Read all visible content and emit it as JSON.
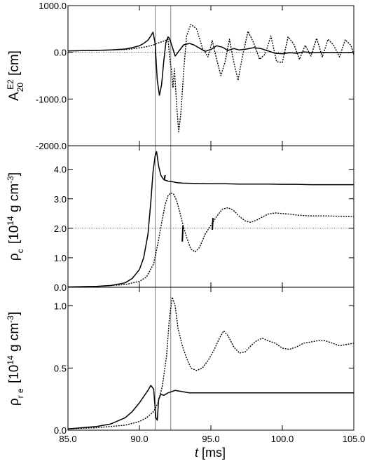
{
  "chart_data": [
    {
      "type": "line",
      "ylabel": {
        "main": "A",
        "sub": "20",
        "sup": "E2",
        "unit": " [cm]"
      },
      "ylim": [
        -2000,
        1000
      ],
      "yticks": [
        "1000.0",
        "0.0",
        "-1000.0",
        "-2000.0"
      ],
      "ytick_values": [
        1000,
        0,
        -1000,
        -2000
      ],
      "reference_lines": {
        "x": [
          91.1,
          92.2
        ],
        "y": [
          0
        ]
      },
      "series": [
        {
          "style": "solid",
          "x": [
            85,
            86,
            87,
            88,
            89,
            89.5,
            90,
            90.3,
            90.6,
            90.8,
            90.95,
            91.1,
            91.25,
            91.4,
            91.55,
            91.7,
            91.85,
            92,
            92.1,
            92.3,
            92.5,
            92.8,
            93.1,
            93.5,
            93.8,
            94.2,
            94.6,
            95,
            95.4,
            95.8,
            96.2,
            96.6,
            97,
            97.5,
            98,
            98.5,
            99,
            99.5,
            100,
            100.5,
            101,
            101.5,
            102,
            103,
            104,
            105
          ],
          "y": [
            30,
            35,
            40,
            50,
            70,
            100,
            140,
            190,
            260,
            350,
            430,
            200,
            -600,
            -920,
            -700,
            -200,
            200,
            330,
            300,
            120,
            -80,
            40,
            160,
            190,
            160,
            90,
            20,
            60,
            140,
            110,
            40,
            80,
            50,
            70,
            100,
            80,
            30,
            -20,
            -30,
            -10,
            -20,
            10,
            -10,
            0,
            -10,
            0
          ]
        },
        {
          "style": "dotted",
          "x": [
            85,
            86,
            87,
            88,
            89,
            89.5,
            90,
            90.5,
            91,
            91.4,
            91.8,
            92,
            92.15,
            92.25,
            92.35,
            92.45,
            92.6,
            92.75,
            92.9,
            93.1,
            93.3,
            93.6,
            94,
            94.4,
            94.8,
            95.1,
            95.4,
            95.7,
            96,
            96.3,
            96.6,
            96.9,
            97.2,
            97.6,
            98,
            98.4,
            98.8,
            99.2,
            99.6,
            100,
            100.4,
            100.8,
            101.2,
            101.6,
            102,
            102.4,
            102.8,
            103.2,
            103.6,
            104,
            104.4,
            104.8,
            105
          ],
          "y": [
            30,
            35,
            40,
            50,
            60,
            75,
            95,
            120,
            160,
            210,
            250,
            280,
            -200,
            -400,
            -760,
            -350,
            -1100,
            -1700,
            -1300,
            -400,
            350,
            600,
            500,
            100,
            -100,
            250,
            -150,
            -500,
            -200,
            280,
            -200,
            -600,
            -100,
            450,
            200,
            -150,
            -40,
            350,
            -200,
            -220,
            330,
            180,
            -150,
            150,
            -80,
            300,
            -100,
            280,
            150,
            -100,
            270,
            150,
            -50
          ]
        }
      ]
    },
    {
      "type": "line",
      "ylabel": {
        "main": "ρ",
        "sub": "c",
        "pre": " [10",
        "sup": "14",
        "unit": " g cm",
        "sup2": "-3",
        "post": "]"
      },
      "ylim": [
        0,
        4.8
      ],
      "yticks": [
        "0.0",
        "1.0",
        "2.0",
        "3.0",
        "4.0"
      ],
      "ytick_values": [
        0,
        1,
        2,
        3,
        4
      ],
      "reference_lines": {
        "x": [
          91.1,
          92.2
        ],
        "y": [
          2.0
        ]
      },
      "series": [
        {
          "style": "solid",
          "x": [
            85,
            87,
            88,
            89,
            89.5,
            90,
            90.3,
            90.6,
            90.8,
            90.95,
            91.1,
            91.2,
            91.35,
            91.5,
            91.7,
            92,
            92.3,
            92.6,
            93,
            94,
            95,
            96,
            97,
            98,
            99,
            100,
            101,
            102,
            103,
            104,
            105
          ],
          "y": [
            0.01,
            0.03,
            0.06,
            0.15,
            0.3,
            0.6,
            1.0,
            1.8,
            2.9,
            3.9,
            4.45,
            4.6,
            4.1,
            3.8,
            3.65,
            3.6,
            3.58,
            3.55,
            3.53,
            3.52,
            3.51,
            3.51,
            3.5,
            3.5,
            3.5,
            3.49,
            3.49,
            3.48,
            3.48,
            3.48,
            3.48
          ],
          "wiggles": [
            {
              "x": 91.75,
              "y": [
                3.66,
                3.8
              ]
            }
          ]
        },
        {
          "style": "dotted",
          "x": [
            85,
            87,
            89,
            90,
            90.5,
            91,
            91.3,
            91.6,
            91.8,
            92,
            92.2,
            92.4,
            92.6,
            92.8,
            93,
            93.3,
            93.6,
            93.9,
            94.2,
            94.6,
            95,
            95.4,
            95.8,
            96.2,
            96.6,
            97,
            97.4,
            97.8,
            98.2,
            98.6,
            99,
            99.5,
            100,
            100.5,
            101,
            101.5,
            102,
            103,
            104,
            105
          ],
          "y": [
            0.01,
            0.03,
            0.09,
            0.2,
            0.35,
            0.8,
            1.5,
            2.3,
            2.8,
            3.1,
            3.2,
            3.15,
            2.95,
            2.6,
            2.2,
            1.7,
            1.3,
            1.2,
            1.35,
            1.8,
            2.1,
            2.4,
            2.65,
            2.7,
            2.6,
            2.4,
            2.25,
            2.2,
            2.28,
            2.38,
            2.48,
            2.52,
            2.5,
            2.48,
            2.45,
            2.43,
            2.42,
            2.42,
            2.41,
            2.4
          ],
          "wiggles": [
            {
              "x": 93.0,
              "y": [
                1.55,
                2.1
              ]
            },
            {
              "x": 95.1,
              "y": [
                1.95,
                2.35
              ]
            }
          ]
        }
      ]
    },
    {
      "type": "line",
      "ylabel": {
        "main": "ρ",
        "sub": "r e",
        "pre": " [10",
        "sup": "14",
        "unit": " g cm",
        "sup2": "-3",
        "post": "]"
      },
      "ylim": [
        0,
        1.15
      ],
      "yticks": [
        "0.0",
        "0.5",
        "1.0"
      ],
      "ytick_values": [
        0,
        0.5,
        1.0
      ],
      "reference_lines": {
        "x": [
          91.1,
          92.2
        ],
        "y": []
      },
      "series": [
        {
          "style": "solid",
          "x": [
            85,
            87,
            88,
            89,
            89.5,
            90,
            90.3,
            90.6,
            90.8,
            91,
            91.05,
            91.15,
            91.25,
            91.35,
            91.5,
            91.7,
            92,
            92.5,
            93,
            93.5,
            94,
            95,
            96,
            97,
            98,
            99,
            100,
            101,
            102,
            103,
            104,
            105
          ],
          "y": [
            0.01,
            0.03,
            0.05,
            0.1,
            0.15,
            0.22,
            0.27,
            0.32,
            0.36,
            0.33,
            0.25,
            0.1,
            0.08,
            0.25,
            0.29,
            0.28,
            0.3,
            0.32,
            0.31,
            0.3,
            0.3,
            0.3,
            0.3,
            0.3,
            0.3,
            0.3,
            0.3,
            0.3,
            0.3,
            0.3,
            0.3,
            0.3
          ]
        },
        {
          "style": "dotted",
          "x": [
            85,
            87,
            89,
            90,
            90.5,
            91,
            91.3,
            91.6,
            91.9,
            92.1,
            92.3,
            92.5,
            92.7,
            93,
            93.3,
            93.6,
            94,
            94.4,
            94.8,
            95.2,
            95.6,
            95.9,
            96.2,
            96.6,
            97,
            97.4,
            97.8,
            98.2,
            98.6,
            99,
            99.5,
            100,
            100.5,
            101,
            101.5,
            102,
            102.5,
            103,
            103.5,
            104,
            104.5,
            105
          ],
          "y": [
            0.01,
            0.02,
            0.04,
            0.07,
            0.1,
            0.15,
            0.22,
            0.35,
            0.6,
            0.9,
            1.07,
            1.0,
            0.82,
            0.68,
            0.58,
            0.5,
            0.48,
            0.5,
            0.56,
            0.64,
            0.74,
            0.8,
            0.76,
            0.67,
            0.62,
            0.63,
            0.68,
            0.72,
            0.74,
            0.72,
            0.7,
            0.66,
            0.65,
            0.67,
            0.7,
            0.71,
            0.72,
            0.72,
            0.7,
            0.68,
            0.69,
            0.7
          ]
        }
      ]
    }
  ],
  "xaxis": {
    "label_italic": "t",
    "label_unit": " [ms]",
    "xlim": [
      85,
      105
    ],
    "ticks": [
      "85.0",
      "90.0",
      "95.0",
      "100.0",
      "105.0"
    ],
    "tick_values": [
      85,
      90,
      95,
      100,
      105
    ]
  },
  "colors": {
    "line": "#000000",
    "reference": "#000000",
    "background": "#ffffff"
  }
}
